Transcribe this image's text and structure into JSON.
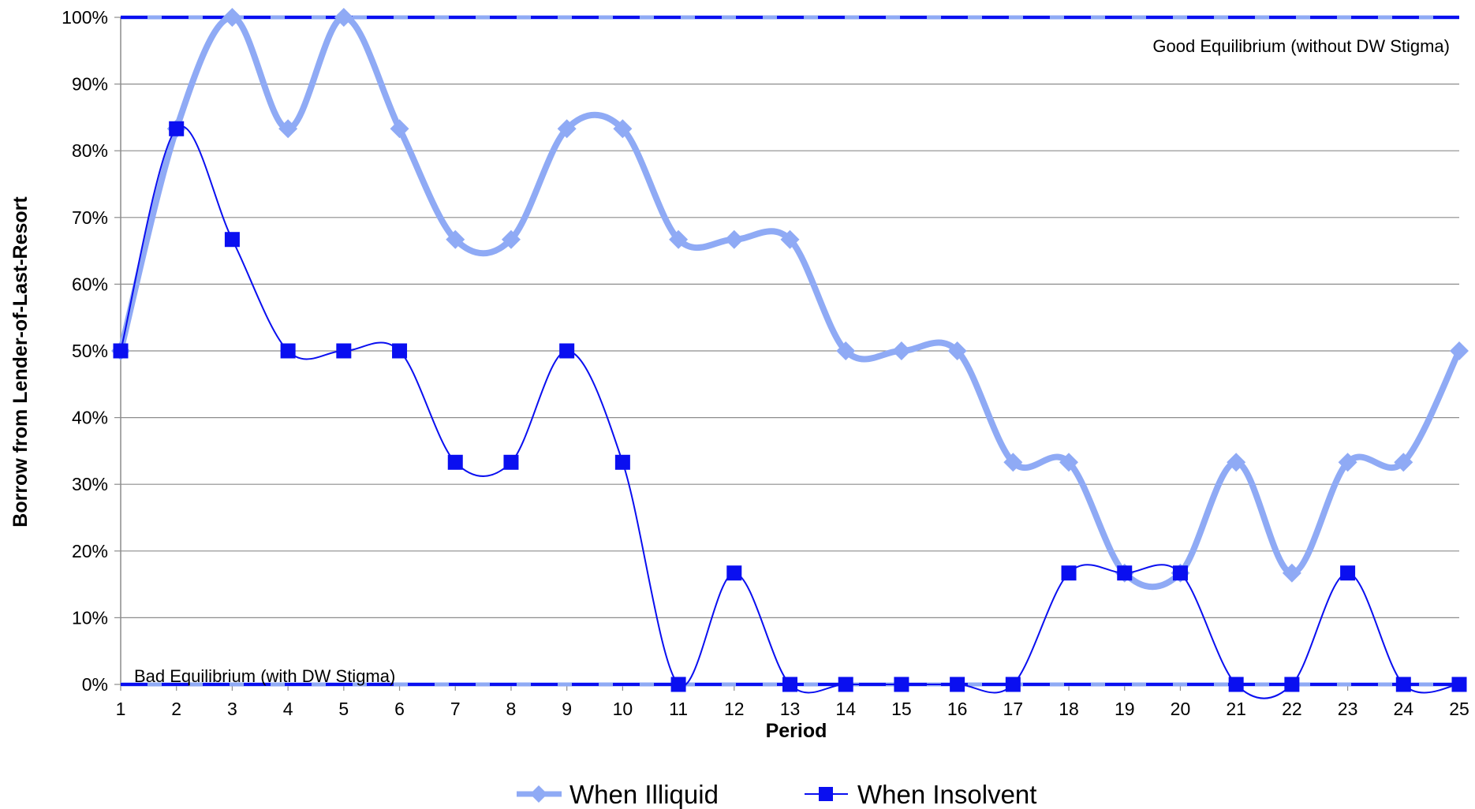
{
  "chart_data": {
    "type": "line",
    "title": "",
    "xlabel": "Period",
    "ylabel": "Borrow from Lender-of-Last-Resort",
    "x": [
      1,
      2,
      3,
      4,
      5,
      6,
      7,
      8,
      9,
      10,
      11,
      12,
      13,
      14,
      15,
      16,
      17,
      18,
      19,
      20,
      21,
      22,
      23,
      24,
      25
    ],
    "y_ticks": [
      "0%",
      "10%",
      "20%",
      "30%",
      "40%",
      "50%",
      "60%",
      "70%",
      "80%",
      "90%",
      "100%"
    ],
    "ylim": [
      0,
      100
    ],
    "grid": true,
    "legend_position": "bottom",
    "series": [
      {
        "name": "When Illiquid",
        "color": "#8FAAF5",
        "marker": "diamond",
        "values": [
          50,
          83.3,
          100,
          83.3,
          100,
          83.3,
          66.7,
          66.7,
          83.3,
          83.3,
          66.7,
          66.7,
          66.7,
          50,
          50,
          50,
          33.3,
          33.3,
          16.7,
          16.7,
          33.3,
          16.7,
          33.3,
          33.3,
          50
        ]
      },
      {
        "name": "When Insolvent",
        "color": "#0A0FF0",
        "marker": "square",
        "values": [
          50,
          83.3,
          66.7,
          50,
          50,
          50,
          33.3,
          33.3,
          50,
          33.3,
          0,
          16.7,
          0,
          0,
          0,
          0,
          0,
          16.7,
          16.7,
          16.7,
          0,
          0,
          16.7,
          0,
          0
        ]
      }
    ],
    "reference_lines": [
      {
        "value": 100,
        "label": "Good Equilibrium (without DW Stigma)"
      },
      {
        "value": 0,
        "label": "Bad Equilibrium (with DW Stigma)"
      }
    ]
  }
}
